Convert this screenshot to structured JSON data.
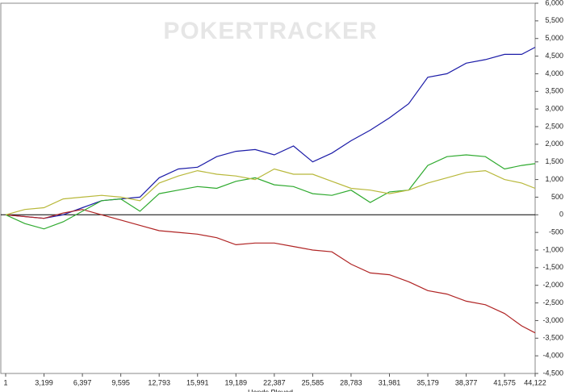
{
  "chart_data": {
    "type": "line",
    "watermark": "POKERTRACKER",
    "x_label": "Hands Played",
    "x": [
      1,
      1600,
      3199,
      4798,
      6397,
      7996,
      9595,
      11194,
      12793,
      14392,
      15991,
      17590,
      19189,
      20788,
      22387,
      23986,
      25585,
      27184,
      28783,
      30382,
      31981,
      33580,
      35179,
      36778,
      38377,
      39976,
      41575,
      43000,
      44122
    ],
    "series": [
      {
        "name": "blue",
        "color": "#1c1ca8",
        "values": [
          0,
          -50,
          -100,
          0,
          200,
          400,
          450,
          500,
          1050,
          1300,
          1350,
          1650,
          1800,
          1850,
          1700,
          1950,
          1500,
          1750,
          2100,
          2400,
          2750,
          3150,
          3900,
          4000,
          4300,
          4400,
          4550,
          4550,
          4750
        ]
      },
      {
        "name": "red",
        "color": "#b02424",
        "values": [
          0,
          -50,
          -100,
          50,
          150,
          0,
          -150,
          -300,
          -450,
          -500,
          -550,
          -650,
          -850,
          -800,
          -800,
          -900,
          -1000,
          -1050,
          -1400,
          -1650,
          -1700,
          -1900,
          -2150,
          -2250,
          -2450,
          -2550,
          -2800,
          -3150,
          -3350
        ]
      },
      {
        "name": "green",
        "color": "#2faa2f",
        "values": [
          0,
          -250,
          -400,
          -200,
          100,
          400,
          450,
          100,
          600,
          700,
          800,
          750,
          950,
          1050,
          850,
          800,
          600,
          550,
          700,
          350,
          650,
          700,
          1400,
          1650,
          1700,
          1650,
          1300,
          1400,
          1450
        ]
      },
      {
        "name": "yellow",
        "color": "#b8b83a",
        "values": [
          0,
          150,
          200,
          450,
          500,
          550,
          500,
          400,
          900,
          1100,
          1250,
          1150,
          1100,
          1000,
          1300,
          1150,
          1150,
          950,
          750,
          700,
          600,
          700,
          900,
          1050,
          1200,
          1250,
          1000,
          900,
          750
        ]
      }
    ],
    "xlim": [
      1,
      44122
    ],
    "xticks": [
      1,
      {
        "value": 3199,
        "label": "3,199"
      },
      {
        "value": 6397,
        "label": "6,397"
      },
      {
        "value": 9595,
        "label": "9,595"
      },
      {
        "value": 12793,
        "label": "12,793"
      },
      {
        "value": 15991,
        "label": "15,991"
      },
      {
        "value": 19189,
        "label": "19,189"
      },
      {
        "value": 22387,
        "label": "22,387"
      },
      {
        "value": 25585,
        "label": "25,585"
      },
      {
        "value": 28783,
        "label": "28,783"
      },
      {
        "value": 31981,
        "label": "31,981"
      },
      {
        "value": 35179,
        "label": "35,179"
      },
      {
        "value": 38377,
        "label": "38,377"
      },
      {
        "value": 41575,
        "label": "41,575"
      },
      {
        "value": 44122,
        "label": "44,122"
      }
    ],
    "ylim": [
      -4500,
      6000
    ],
    "yticks": [
      {
        "value": -4500,
        "label": "-4,500"
      },
      {
        "value": -4000,
        "label": "-4,000"
      },
      {
        "value": -3500,
        "label": "-3,500"
      },
      {
        "value": -3000,
        "label": "-3,000"
      },
      {
        "value": -2500,
        "label": "-2,500"
      },
      {
        "value": -2000,
        "label": "-2,000"
      },
      {
        "value": -1500,
        "label": "-1,500"
      },
      {
        "value": -1000,
        "label": "-1,000"
      },
      -500,
      0,
      500,
      {
        "value": 1000,
        "label": "1,000"
      },
      {
        "value": 1500,
        "label": "1,500"
      },
      {
        "value": 2000,
        "label": "2,000"
      },
      {
        "value": 2500,
        "label": "2,500"
      },
      {
        "value": 3000,
        "label": "3,000"
      },
      {
        "value": 3500,
        "label": "3,500"
      },
      {
        "value": 4000,
        "label": "4,000"
      },
      {
        "value": 4500,
        "label": "4,500"
      },
      {
        "value": 5000,
        "label": "5,000"
      },
      {
        "value": 5500,
        "label": "5,500"
      },
      {
        "value": 6000,
        "label": "6,000"
      }
    ],
    "zero_line": true
  }
}
